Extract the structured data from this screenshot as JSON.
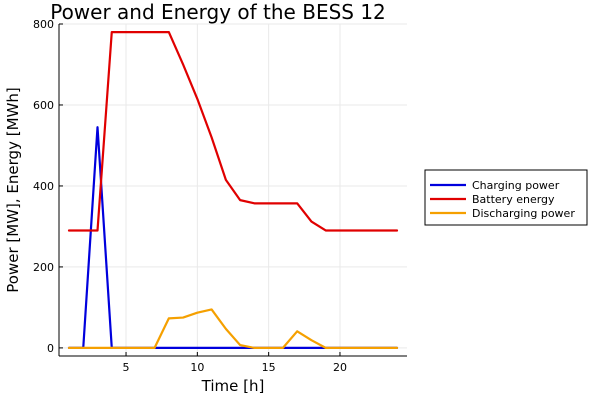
{
  "chart_data": {
    "type": "line",
    "title": "Power and Energy of the BESS 12",
    "xlabel": "Time [h]",
    "ylabel": "Power [MW], Energy [MWh]",
    "xlim": [
      0.3,
      24.7
    ],
    "ylim": [
      -20,
      800
    ],
    "xticks": [
      5,
      10,
      15,
      20
    ],
    "yticks": [
      0,
      200,
      400,
      600,
      800
    ],
    "grid": true,
    "legend_position": "outside-right",
    "x": [
      1,
      2,
      3,
      4,
      5,
      6,
      7,
      8,
      9,
      10,
      11,
      12,
      13,
      14,
      15,
      16,
      17,
      18,
      19,
      20,
      21,
      22,
      23,
      24
    ],
    "series": [
      {
        "name": "Charging power",
        "color": "#0000dd",
        "values": [
          0,
          0,
          545,
          0,
          0,
          0,
          0,
          0,
          0,
          0,
          0,
          0,
          0,
          0,
          0,
          0,
          0,
          0,
          0,
          0,
          0,
          0,
          0,
          0
        ]
      },
      {
        "name": "Battery energy",
        "color": "#e00000",
        "values": [
          290,
          290,
          290,
          780,
          780,
          780,
          780,
          780,
          700,
          615,
          520,
          415,
          365,
          357,
          357,
          357,
          357,
          312,
          290,
          290,
          290,
          290,
          290,
          290
        ]
      },
      {
        "name": "Discharging power",
        "color": "#f5a000",
        "values": [
          0,
          0,
          0,
          0,
          0,
          0,
          0,
          73,
          75,
          87,
          95,
          47,
          7,
          0,
          0,
          0,
          41,
          19,
          0,
          0,
          0,
          0,
          0,
          0
        ]
      }
    ]
  }
}
